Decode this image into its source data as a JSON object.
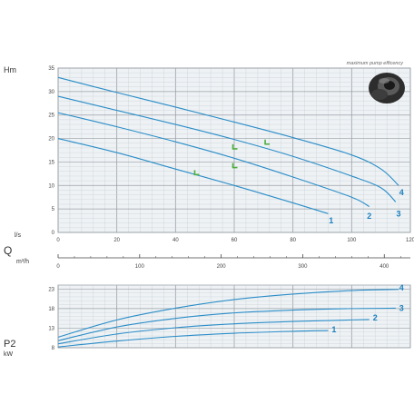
{
  "chart_data": [
    {
      "type": "line",
      "axis_title_y": "Hm",
      "axis_title_x_primary": "l/s",
      "axis_title_x_secondary": "m³/h",
      "quantity_label": "Q",
      "annotation": "maximum pump efficency",
      "x_ticks": [
        "0",
        "20",
        "40",
        "60",
        "80",
        "100",
        "120"
      ],
      "y_ticks": [
        "0",
        "5",
        "10",
        "15",
        "20",
        "25",
        "30",
        "35"
      ],
      "x2_ticks": [
        "0",
        "100",
        "200",
        "300",
        "400"
      ],
      "xlim": [
        0,
        120
      ],
      "ylim": [
        0,
        35
      ],
      "x2lim_m3h": [
        0,
        432
      ],
      "grid": true,
      "series": [
        {
          "name": "1",
          "x": [
            0,
            20,
            40,
            60,
            80,
            92
          ],
          "y": [
            20,
            17,
            13.5,
            10,
            6.3,
            4
          ]
        },
        {
          "name": "2",
          "x": [
            0,
            20,
            40,
            60,
            80,
            100,
            106
          ],
          "y": [
            25.5,
            22.5,
            19.3,
            15.8,
            11.8,
            7.5,
            5.5
          ]
        },
        {
          "name": "3",
          "x": [
            0,
            20,
            40,
            60,
            80,
            100,
            110,
            115
          ],
          "y": [
            29,
            26,
            23,
            19.8,
            16.2,
            12,
            9.5,
            6.5
          ]
        },
        {
          "name": "4",
          "x": [
            0,
            20,
            40,
            60,
            80,
            100,
            110,
            116
          ],
          "y": [
            33,
            29.8,
            26.7,
            23.5,
            20.2,
            16.5,
            13.5,
            10
          ]
        }
      ],
      "efficiency_points": [
        {
          "x": 47,
          "y": 12.5
        },
        {
          "x": 60,
          "y": 14
        },
        {
          "x": 60,
          "y": 18
        },
        {
          "x": 71,
          "y": 19
        }
      ],
      "curve_label_points": [
        {
          "x": 93,
          "y": 2.5
        },
        {
          "x": 106,
          "y": 3.5
        },
        {
          "x": 116,
          "y": 4
        },
        {
          "x": 117,
          "y": 8.5
        }
      ]
    },
    {
      "type": "line",
      "axis_title_y": "P2",
      "axis_unit_y": "kW",
      "y_ticks": [
        "8",
        "13",
        "18",
        "23"
      ],
      "xlim": [
        0,
        120
      ],
      "ylim": [
        8,
        24
      ],
      "grid": true,
      "series": [
        {
          "name": "1",
          "x": [
            0,
            20,
            40,
            60,
            80,
            92
          ],
          "y": [
            8.2,
            9.7,
            10.9,
            11.7,
            12.2,
            12.4
          ]
        },
        {
          "name": "2",
          "x": [
            0,
            20,
            40,
            60,
            80,
            100,
            106
          ],
          "y": [
            9,
            11.5,
            13.1,
            14.1,
            14.7,
            15.1,
            15.2
          ]
        },
        {
          "name": "3",
          "x": [
            0,
            20,
            40,
            60,
            80,
            100,
            115
          ],
          "y": [
            9.8,
            13.3,
            15.5,
            16.9,
            17.6,
            18,
            18.1
          ]
        },
        {
          "name": "4",
          "x": [
            0,
            20,
            40,
            60,
            80,
            100,
            116
          ],
          "y": [
            10.7,
            15.1,
            18.1,
            20.3,
            21.7,
            22.6,
            22.9
          ]
        }
      ],
      "curve_label_points": [
        {
          "x": 94,
          "y": 12.6
        },
        {
          "x": 108,
          "y": 15.7
        },
        {
          "x": 117,
          "y": 18.1
        },
        {
          "x": 117,
          "y": 23.3
        }
      ]
    }
  ],
  "colors": {
    "curve": "#2a8dc8",
    "curve_label": "#1a7fc0",
    "efficiency_marker": "#4cae3c",
    "grid_major": "#9aa0a6",
    "grid_minor": "#c9d0d6",
    "plot_bg": "#eef2f5"
  },
  "image": {
    "icon": "pump-impeller-icon"
  }
}
